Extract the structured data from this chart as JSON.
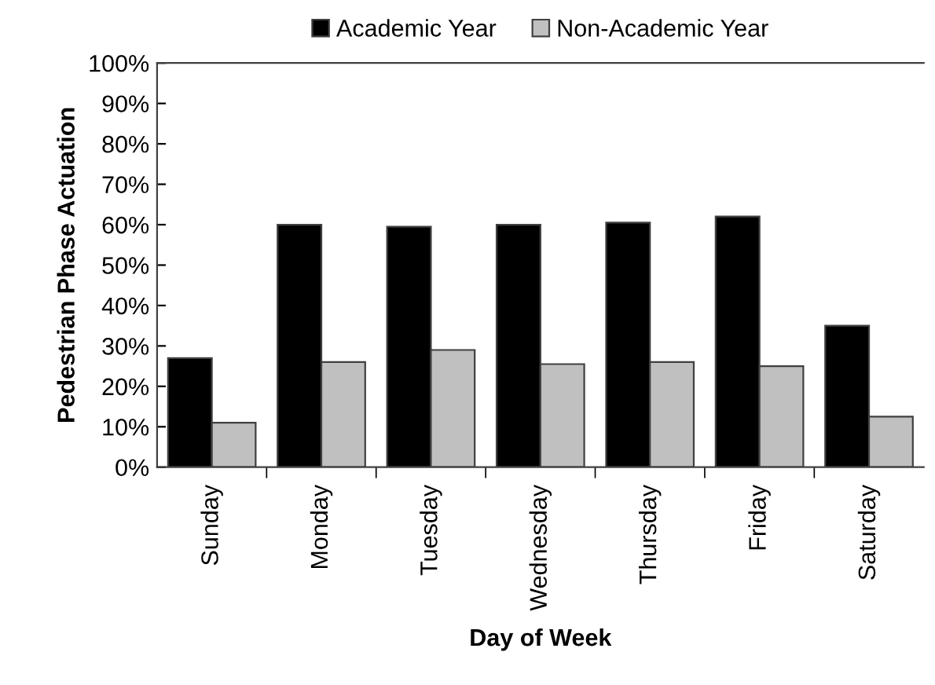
{
  "chart_data": {
    "type": "bar",
    "xlabel": "Day of Week",
    "ylabel": "Pedestrian Phase Actuation",
    "categories": [
      "Sunday",
      "Monday",
      "Tuesday",
      "Wednesday",
      "Thursday",
      "Friday",
      "Saturday"
    ],
    "series": [
      {
        "name": "Academic Year",
        "color": "#000000",
        "values": [
          27,
          60,
          59.5,
          60,
          60.5,
          62,
          35
        ]
      },
      {
        "name": "Non-Academic Year",
        "color": "#c0c0c0",
        "values": [
          11,
          26,
          29,
          25.5,
          26,
          25,
          12.5
        ]
      }
    ],
    "ylim": [
      0,
      100
    ],
    "yticks": [
      {
        "value": 0,
        "label": "0%"
      },
      {
        "value": 10,
        "label": "10%"
      },
      {
        "value": 20,
        "label": "20%"
      },
      {
        "value": 30,
        "label": "30%"
      },
      {
        "value": 40,
        "label": "40%"
      },
      {
        "value": 50,
        "label": "50%"
      },
      {
        "value": 60,
        "label": "60%"
      },
      {
        "value": 70,
        "label": "70%"
      },
      {
        "value": 80,
        "label": "80%"
      },
      {
        "value": 90,
        "label": "90%"
      },
      {
        "value": 100,
        "label": "100%"
      }
    ],
    "grid": false,
    "legend": "top"
  }
}
